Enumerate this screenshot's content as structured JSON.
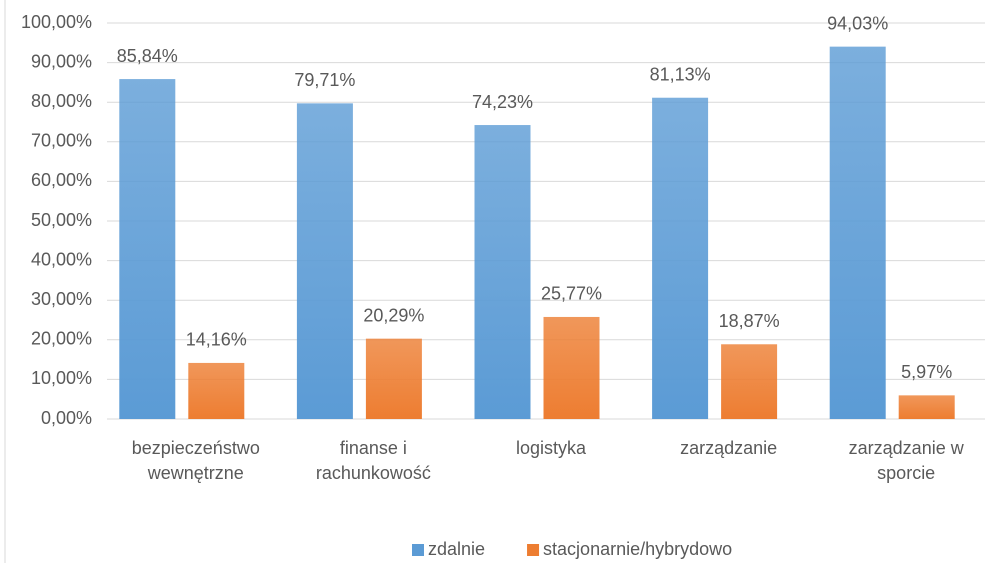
{
  "chart_data": {
    "type": "bar",
    "categories": [
      "bezpieczeństwo wewnętrzne",
      "finanse i rachunkowość",
      "logistyka",
      "zarządzanie",
      "zarządzanie w sporcie"
    ],
    "series": [
      {
        "name": "zdalnie",
        "color": "#5b9bd5",
        "values": [
          85.84,
          79.71,
          74.23,
          81.13,
          94.03
        ],
        "value_labels": [
          "85,84%",
          "79,71%",
          "74,23%",
          "81,13%",
          "94,03%"
        ]
      },
      {
        "name": "stacjonarnie/hybrydowo",
        "color": "#ed7d31",
        "values": [
          14.16,
          20.29,
          25.77,
          18.87,
          5.97
        ],
        "value_labels": [
          "14,16%",
          "20,29%",
          "25,77%",
          "18,87%",
          "5,97%"
        ]
      }
    ],
    "ylim": [
      0,
      100
    ],
    "yticks": [
      {
        "value": 0,
        "label": "0,00%"
      },
      {
        "value": 10,
        "label": "10,00%"
      },
      {
        "value": 20,
        "label": "20,00%"
      },
      {
        "value": 30,
        "label": "30,00%"
      },
      {
        "value": 40,
        "label": "40,00%"
      },
      {
        "value": 50,
        "label": "50,00%"
      },
      {
        "value": 60,
        "label": "60,00%"
      },
      {
        "value": 70,
        "label": "70,00%"
      },
      {
        "value": 80,
        "label": "80,00%"
      },
      {
        "value": 90,
        "label": "90,00%"
      },
      {
        "value": 100,
        "label": "100,00%"
      }
    ],
    "grid": true,
    "legend": "bottom"
  }
}
